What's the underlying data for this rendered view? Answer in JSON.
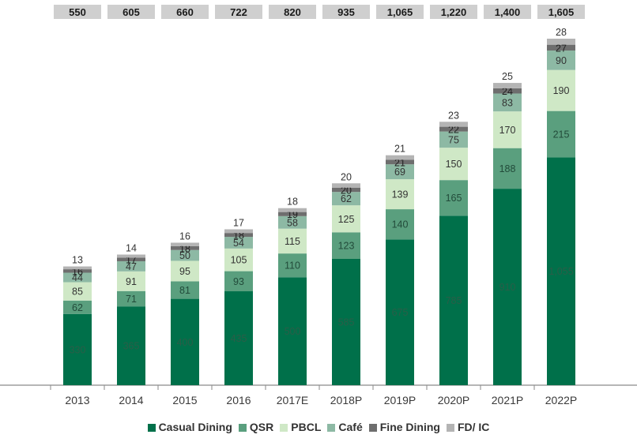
{
  "chart_data": {
    "type": "bar",
    "stacked": true,
    "categories": [
      "2013",
      "2014",
      "2015",
      "2016",
      "2017E",
      "2018P",
      "2019P",
      "2020P",
      "2021P",
      "2022P"
    ],
    "totals": [
      "550",
      "605",
      "660",
      "722",
      "820",
      "935",
      "1,065",
      "1,220",
      "1,400",
      "1,605"
    ],
    "series": [
      {
        "name": "Casual Dining",
        "color": "#00704a",
        "values": [
          330,
          365,
          400,
          435,
          500,
          585,
          675,
          785,
          910,
          1055
        ],
        "labels": [
          "330",
          "365",
          "400",
          "435",
          "500",
          "585",
          "675",
          "785",
          "910",
          "1,055"
        ]
      },
      {
        "name": "QSR",
        "color": "#5a9f7e",
        "values": [
          62,
          71,
          81,
          93,
          110,
          123,
          140,
          165,
          188,
          215
        ],
        "labels": [
          "62",
          "71",
          "81",
          "93",
          "110",
          "123",
          "140",
          "165",
          "188",
          "215"
        ]
      },
      {
        "name": "PBCL",
        "color": "#cfe8c6",
        "values": [
          85,
          91,
          95,
          105,
          115,
          125,
          139,
          150,
          170,
          190
        ],
        "labels": [
          "85",
          "91",
          "95",
          "105",
          "115",
          "125",
          "139",
          "150",
          "170",
          "190"
        ]
      },
      {
        "name": "Café",
        "color": "#8db9a4",
        "values": [
          44,
          47,
          50,
          54,
          58,
          62,
          69,
          75,
          83,
          90
        ],
        "labels": [
          "44",
          "47",
          "50",
          "54",
          "58",
          "62",
          "69",
          "75",
          "83",
          "90"
        ]
      },
      {
        "name": "Fine Dining",
        "color": "#6e6e6e",
        "values": [
          16,
          17,
          18,
          18,
          19,
          20,
          21,
          22,
          24,
          27
        ],
        "labels": [
          "16",
          "17",
          "18",
          "18",
          "19",
          "20",
          "21",
          "22",
          "24",
          "27"
        ]
      },
      {
        "name": "FD/ IC",
        "color": "#b4b4b4",
        "values": [
          13,
          14,
          16,
          17,
          18,
          20,
          21,
          23,
          25,
          28
        ],
        "labels": [
          "13",
          "14",
          "16",
          "17",
          "18",
          "20",
          "21",
          "23",
          "25",
          "28"
        ]
      }
    ],
    "colors": {
      "total_box": "#cfcfcf",
      "axis": "#8a8a8a"
    },
    "ylim": [
      0,
      1605
    ],
    "grid": false,
    "legend_position": "bottom"
  }
}
